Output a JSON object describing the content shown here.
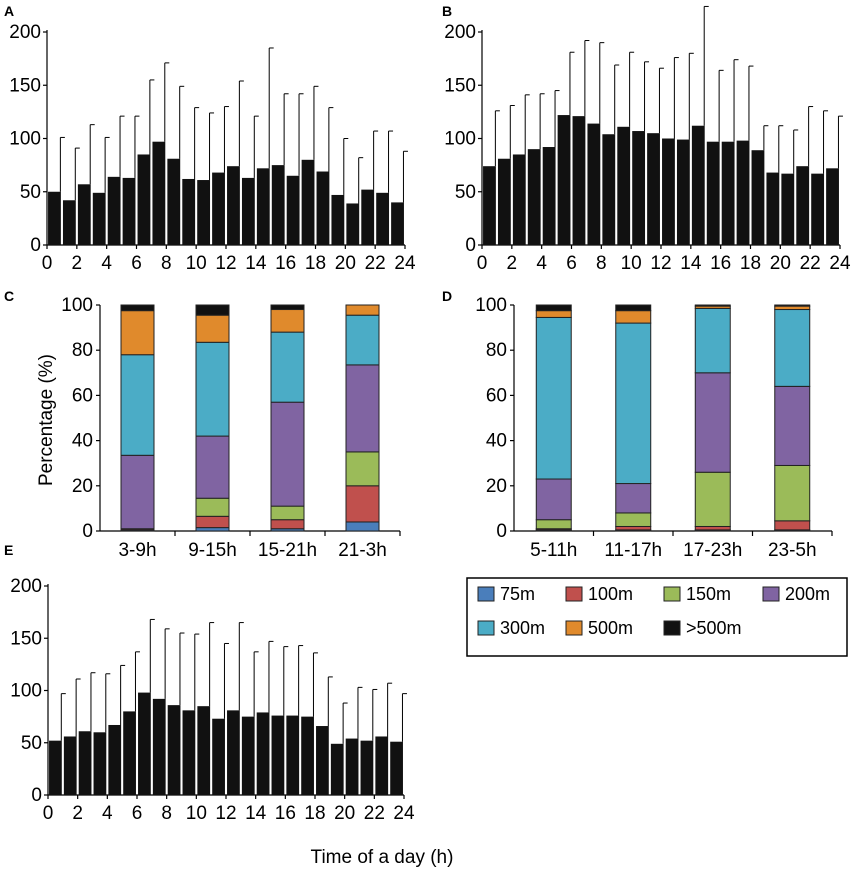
{
  "figure": {
    "xlabel": "Time of a day (h)",
    "legend_title": "",
    "colors": {
      "bar": "#111111",
      "75m": "#4a7ebb",
      "100m": "#c0504d",
      "150m": "#9bbb59",
      "200m": "#8064a2",
      "300m": "#4bacc6",
      "500m": "#e08a2c",
      ">500m": "#111111"
    }
  },
  "legend": {
    "items": [
      {
        "label": "75m",
        "color": "#4a7ebb"
      },
      {
        "label": "100m",
        "color": "#c0504d"
      },
      {
        "label": "150m",
        "color": "#9bbb59"
      },
      {
        "label": "200m",
        "color": "#8064a2"
      },
      {
        "label": "300m",
        "color": "#4bacc6"
      },
      {
        "label": "500m",
        "color": "#e08a2c"
      },
      {
        "label": ">500m",
        "color": "#111111"
      }
    ]
  },
  "chart_data": [
    {
      "panel": "A",
      "type": "bar",
      "xlabel": "Time of a day (h)",
      "ylabel": "",
      "ylim": [
        0,
        200
      ],
      "yticks": [
        0,
        50,
        100,
        150,
        200
      ],
      "xlim": [
        0,
        24
      ],
      "xticks": [
        0,
        2,
        4,
        6,
        8,
        10,
        12,
        14,
        16,
        18,
        20,
        22,
        24
      ],
      "x": [
        0.5,
        1.5,
        2.5,
        3.5,
        4.5,
        5.5,
        6.5,
        7.5,
        8.5,
        9.5,
        10.5,
        11.5,
        12.5,
        13.5,
        14.5,
        15.5,
        16.5,
        17.5,
        18.5,
        19.5,
        20.5,
        21.5,
        22.5,
        23.5
      ],
      "values": [
        50,
        42,
        57,
        49,
        64,
        63,
        85,
        97,
        81,
        62,
        61,
        68,
        74,
        63,
        72,
        75,
        65,
        80,
        69,
        47,
        39,
        52,
        49,
        40
      ],
      "error_upper": [
        101,
        91,
        113,
        101,
        121,
        121,
        155,
        171,
        149,
        129,
        124,
        130,
        154,
        121,
        185,
        142,
        142,
        149,
        129,
        100,
        82,
        107,
        107,
        88
      ]
    },
    {
      "panel": "B",
      "type": "bar",
      "xlabel": "Time of a day (h)",
      "ylabel": "",
      "ylim": [
        0,
        200
      ],
      "yticks": [
        0,
        50,
        100,
        150,
        200
      ],
      "xlim": [
        0,
        24
      ],
      "xticks": [
        0,
        2,
        4,
        6,
        8,
        10,
        12,
        14,
        16,
        18,
        20,
        22,
        24
      ],
      "x": [
        0.5,
        1.5,
        2.5,
        3.5,
        4.5,
        5.5,
        6.5,
        7.5,
        8.5,
        9.5,
        10.5,
        11.5,
        12.5,
        13.5,
        14.5,
        15.5,
        16.5,
        17.5,
        18.5,
        19.5,
        20.5,
        21.5,
        22.5,
        23.5
      ],
      "values": [
        74,
        81,
        85,
        90,
        92,
        122,
        121,
        114,
        104,
        111,
        107,
        105,
        100,
        99,
        112,
        97,
        97,
        98,
        89,
        68,
        67,
        74,
        67,
        72
      ],
      "error_upper": [
        126,
        131,
        141,
        142,
        145,
        181,
        192,
        190,
        169,
        181,
        172,
        166,
        176,
        180,
        224,
        164,
        174,
        168,
        112,
        112,
        108,
        130,
        126,
        121
      ]
    },
    {
      "panel": "C",
      "type": "bar",
      "stacked": true,
      "ylabel": "Percentage (%)",
      "ylim": [
        0,
        100
      ],
      "yticks": [
        0,
        20,
        40,
        60,
        80,
        100
      ],
      "categories": [
        "3-9h",
        "9-15h",
        "15-21h",
        "21-3h"
      ],
      "series": [
        {
          "name": "75m",
          "values": [
            0.5,
            1.5,
            1.0,
            4.0
          ]
        },
        {
          "name": "100m",
          "values": [
            0.5,
            5.0,
            4.0,
            16.0
          ]
        },
        {
          "name": "150m",
          "values": [
            0.0,
            8.0,
            6.0,
            15.0
          ]
        },
        {
          "name": "200m",
          "values": [
            32.5,
            27.5,
            46.0,
            38.5
          ]
        },
        {
          "name": "300m",
          "values": [
            44.5,
            41.5,
            31.0,
            22.0
          ]
        },
        {
          "name": "500m",
          "values": [
            19.5,
            12.0,
            10.0,
            4.5
          ]
        },
        {
          "name": ">500m",
          "values": [
            2.5,
            4.5,
            2.0,
            0.0
          ]
        }
      ]
    },
    {
      "panel": "D",
      "type": "bar",
      "stacked": true,
      "ylabel": "",
      "ylim": [
        0,
        100
      ],
      "yticks": [
        0,
        20,
        40,
        60,
        80,
        100
      ],
      "categories": [
        "5-11h",
        "11-17h",
        "17-23h",
        "23-5h"
      ],
      "series": [
        {
          "name": "75m",
          "values": [
            0.5,
            0.5,
            0.5,
            0.5
          ]
        },
        {
          "name": "100m",
          "values": [
            0.5,
            1.5,
            1.5,
            4.0
          ]
        },
        {
          "name": "150m",
          "values": [
            4.0,
            6.0,
            24.0,
            24.5
          ]
        },
        {
          "name": "200m",
          "values": [
            18.0,
            13.0,
            44.0,
            35.0
          ]
        },
        {
          "name": "300m",
          "values": [
            71.5,
            71.0,
            28.5,
            34.0
          ]
        },
        {
          "name": "500m",
          "values": [
            3.0,
            5.5,
            1.0,
            1.5
          ]
        },
        {
          "name": ">500m",
          "values": [
            2.5,
            2.5,
            0.5,
            0.5
          ]
        }
      ]
    },
    {
      "panel": "E",
      "type": "bar",
      "xlabel": "Time of a day (h)",
      "ylabel": "",
      "ylim": [
        0,
        200
      ],
      "yticks": [
        0,
        50,
        100,
        150,
        200
      ],
      "xlim": [
        0,
        24
      ],
      "xticks": [
        0,
        2,
        4,
        6,
        8,
        10,
        12,
        14,
        16,
        18,
        20,
        22,
        24
      ],
      "x": [
        0.5,
        1.5,
        2.5,
        3.5,
        4.5,
        5.5,
        6.5,
        7.5,
        8.5,
        9.5,
        10.5,
        11.5,
        12.5,
        13.5,
        14.5,
        15.5,
        16.5,
        17.5,
        18.5,
        19.5,
        20.5,
        21.5,
        22.5,
        23.5
      ],
      "values": [
        52,
        56,
        61,
        60,
        67,
        80,
        98,
        92,
        86,
        81,
        85,
        73,
        81,
        75,
        79,
        76,
        76,
        75,
        66,
        49,
        54,
        52,
        56,
        51
      ],
      "error_upper": [
        97,
        111,
        117,
        116,
        124,
        137,
        168,
        159,
        155,
        154,
        165,
        145,
        165,
        137,
        147,
        142,
        143,
        136,
        113,
        88,
        103,
        101,
        107,
        97
      ]
    }
  ]
}
